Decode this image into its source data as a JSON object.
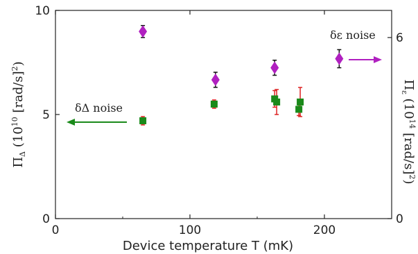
{
  "chart_data": {
    "type": "scatter",
    "xlabel": "Device temperature  T  (mK)",
    "xlim": [
      0,
      250
    ],
    "x_ticks": [
      "0",
      "100",
      "200"
    ],
    "left_axis": {
      "label": "Π_Δ  (10^10 [rad/s]^2)",
      "ylim": [
        0,
        10
      ],
      "ticks": [
        "0",
        "5",
        "10"
      ]
    },
    "right_axis": {
      "label": "Π_ε  (10^14 [rad/s]^2)",
      "ylim": [
        0,
        6.9
      ],
      "ticks": [
        "0",
        "6"
      ]
    },
    "series": [
      {
        "name": "δΔ noise",
        "axis": "left",
        "marker": "square",
        "color": "#1a8a1a",
        "error_color": "#dd2222",
        "points": [
          {
            "x": 65,
            "y": 4.7,
            "err": 0.2
          },
          {
            "x": 118,
            "y": 5.5,
            "err": 0.2
          },
          {
            "x": 163,
            "y": 5.75,
            "err": 0.4
          },
          {
            "x": 164.5,
            "y": 5.6,
            "err": 0.6
          },
          {
            "x": 181,
            "y": 5.25,
            "err": 0.3
          },
          {
            "x": 182,
            "y": 5.6,
            "err": 0.7
          }
        ]
      },
      {
        "name": "δε noise",
        "axis": "right",
        "marker": "diamond",
        "color": "#b020c0",
        "error_color": "#111111",
        "points": [
          {
            "x": 65,
            "y": 6.2,
            "err": 0.2
          },
          {
            "x": 119,
            "y": 4.6,
            "err": 0.25
          },
          {
            "x": 163,
            "y": 5.0,
            "err": 0.25
          },
          {
            "x": 211,
            "y": 5.3,
            "err": 0.3
          }
        ]
      }
    ],
    "annotations": {
      "left_arrow_text": "δΔ noise",
      "right_arrow_text": "δε noise"
    }
  }
}
